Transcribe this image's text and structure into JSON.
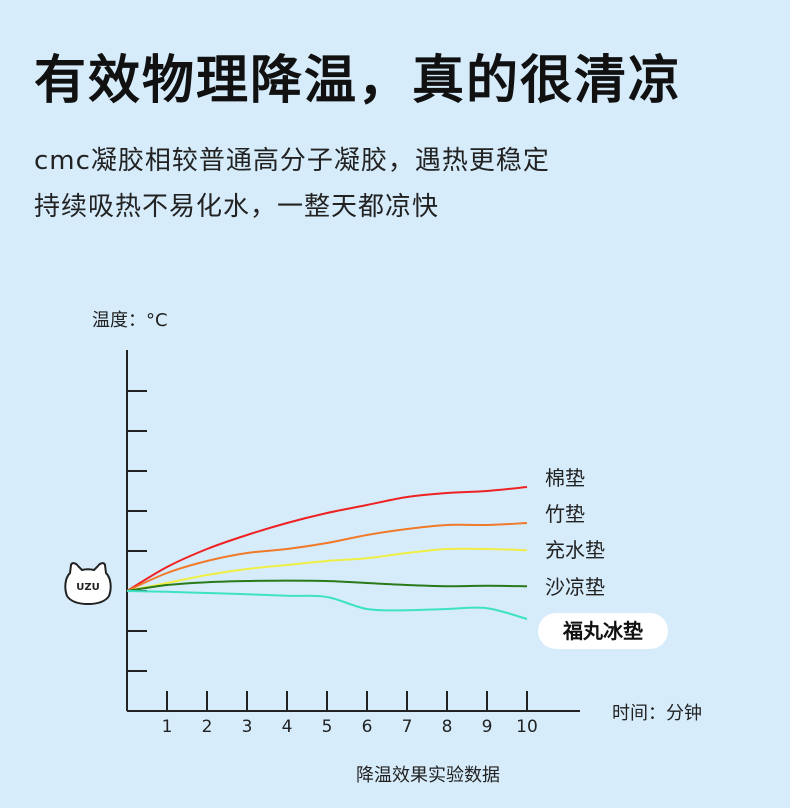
{
  "headline": "有效物理降温，真的很清凉",
  "subtitle_lines": [
    "cmc凝胶相较普通高分子凝胶，遇热更稳定",
    "持续吸热不易化水，一整天都凉快"
  ],
  "logo_text": "UZU",
  "chart_data": {
    "type": "line",
    "title": "降温效果实验数据",
    "xlabel": "时间：分钟",
    "ylabel": "温度：°C",
    "x": [
      0,
      1,
      2,
      3,
      4,
      5,
      6,
      7,
      8,
      9,
      10
    ],
    "xlim": [
      0,
      11
    ],
    "ylim": [
      -3,
      6
    ],
    "y_ticks": [
      -2,
      -1,
      0,
      1,
      2,
      3,
      4,
      5
    ],
    "grid": false,
    "legend": "right-end labels",
    "highlight_series": "福丸冰垫",
    "series": [
      {
        "name": "棉垫",
        "color": "#ee2222",
        "values": [
          0,
          0.6,
          1.05,
          1.4,
          1.7,
          1.95,
          2.15,
          2.35,
          2.45,
          2.5,
          2.6
        ]
      },
      {
        "name": "竹垫",
        "color": "#f07a2a",
        "values": [
          0,
          0.45,
          0.75,
          0.95,
          1.05,
          1.2,
          1.4,
          1.55,
          1.65,
          1.65,
          1.7
        ]
      },
      {
        "name": "充水垫",
        "color": "#eeee44",
        "values": [
          0,
          0.2,
          0.4,
          0.55,
          0.65,
          0.75,
          0.82,
          0.95,
          1.05,
          1.05,
          1.02
        ]
      },
      {
        "name": "沙凉垫",
        "color": "#2a7a1a",
        "values": [
          0,
          0.15,
          0.22,
          0.25,
          0.26,
          0.25,
          0.2,
          0.15,
          0.12,
          0.13,
          0.12
        ]
      },
      {
        "name": "福丸冰垫",
        "color": "#3de2c4",
        "values": [
          0,
          -0.02,
          -0.05,
          -0.08,
          -0.12,
          -0.15,
          -0.45,
          -0.48,
          -0.45,
          -0.43,
          -0.7
        ]
      }
    ]
  }
}
